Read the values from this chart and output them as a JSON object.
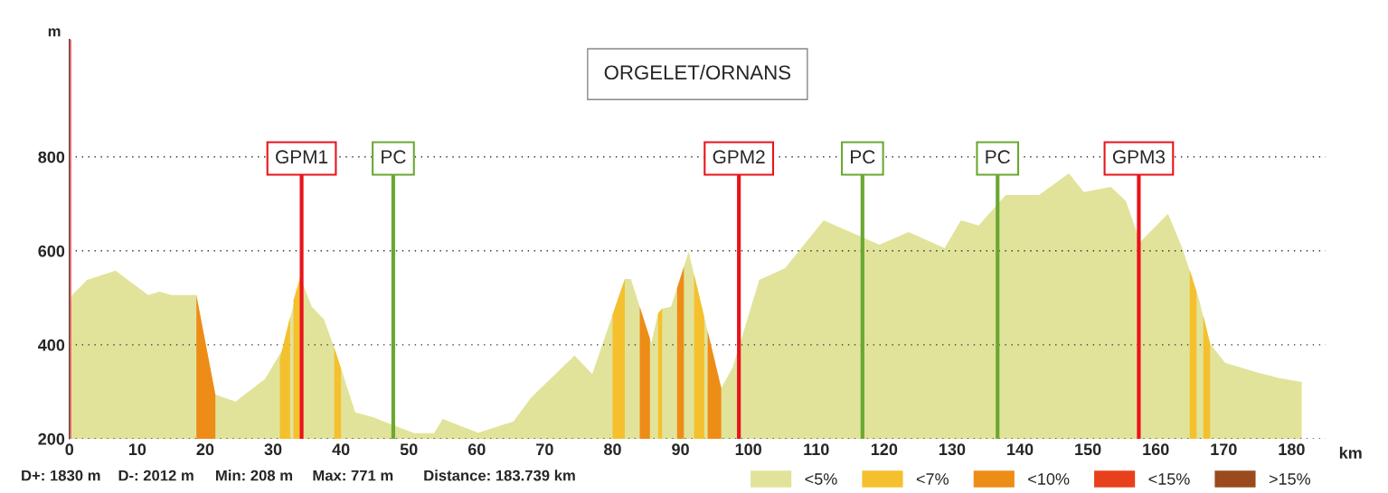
{
  "chart_data": {
    "type": "area",
    "title": "ORGELET/ORNANS",
    "xlabel": "km",
    "ylabel": "m",
    "xlim": [
      0,
      185
    ],
    "xticks": [
      0,
      10,
      20,
      30,
      40,
      50,
      60,
      70,
      80,
      90,
      100,
      110,
      120,
      130,
      140,
      150,
      160,
      170,
      180
    ],
    "ylim": [
      200,
      1050
    ],
    "yticks": [
      200,
      400,
      600,
      800
    ],
    "grid": "y",
    "legend": "bottom right",
    "series": [
      {
        "name": "<5%",
        "color": "#e1e39a",
        "x": [
          0,
          0.4,
          2.6,
          6.8,
          11.6,
          13.3,
          15,
          18.7,
          21.5,
          24.5,
          25.8,
          28.8,
          31.4,
          34,
          35.7,
          37.5,
          39.1,
          42.1,
          44.7,
          47.3,
          50.8,
          53.7,
          55,
          60.2,
          65.4,
          68,
          74.4,
          77,
          81.8,
          82.7,
          85.7,
          86.7,
          87.3,
          88.6,
          91.2,
          96,
          97.7,
          101.6,
          105.4,
          111.1,
          114.1,
          119.3,
          123.6,
          128.9,
          131.3,
          133.9,
          137.9,
          142.8,
          147.2,
          149.4,
          153.4,
          155.6,
          157.7,
          161.8,
          163.9,
          166.3,
          168,
          170.2,
          174.7,
          178.2,
          181.5
        ],
        "values": [
          490,
          506,
          538,
          558,
          506,
          513,
          506,
          506,
          294,
          279,
          294,
          327,
          390,
          544,
          481,
          454,
          390,
          256,
          246,
          231,
          212,
          212,
          242,
          213,
          237,
          288,
          377,
          338,
          540,
          540,
          404,
          467,
          477,
          481,
          598,
          308,
          352,
          538,
          563,
          665,
          646,
          613,
          640,
          606,
          665,
          654,
          719,
          719,
          765,
          725,
          736,
          706,
          619,
          679,
          606,
          500,
          402,
          362,
          342,
          329,
          321
        ]
      },
      {
        "name": "<7%",
        "color": "#f5c02e",
        "x": [
          31,
          32.5,
          32.7,
          33,
          34,
          36,
          39,
          40,
          60,
          80,
          81.8,
          84,
          86.7,
          87.3,
          89,
          92,
          93.5,
          120,
          165,
          166,
          166.5,
          167,
          168
        ],
        "values": [
          370,
          460,
          null,
          495,
          544,
          null,
          394,
          350,
          null,
          464,
          540,
          null,
          467,
          477,
          null,
          550,
          459,
          null,
          560,
          513,
          null,
          462,
          402
        ]
      },
      {
        "name": "<10%",
        "color": "#ee8c18",
        "x": [
          18.7,
          21.5,
          50,
          84,
          85.5,
          88,
          89.5,
          90.5,
          92,
          94,
          96
        ],
        "values": [
          506,
          294,
          null,
          481,
          413,
          null,
          521,
          566,
          null,
          429,
          308
        ]
      },
      {
        "name": "<15%",
        "color": "#e8401c"
      },
      {
        "name": ">15%",
        "color": "#9a4a1c"
      }
    ],
    "ref_lines": [
      {
        "axis": "x",
        "value": 0,
        "label": null,
        "color": "#e06060"
      },
      {
        "axis": "x",
        "value": 34.2,
        "label": "GPM1",
        "color": "#e8141c"
      },
      {
        "axis": "x",
        "value": 47.7,
        "label": "PC",
        "color": "#6aa832"
      },
      {
        "axis": "x",
        "value": 98.6,
        "label": "GPM2",
        "color": "#e8141c"
      },
      {
        "axis": "x",
        "value": 116.8,
        "label": "PC",
        "color": "#6aa832"
      },
      {
        "axis": "x",
        "value": 136.7,
        "label": "PC",
        "color": "#6aa832"
      },
      {
        "axis": "x",
        "value": 157.5,
        "label": "GPM3",
        "color": "#e8141c"
      }
    ],
    "annotations": [
      "D+: 1830 m",
      "D-: 2012 m",
      "Min: 208 m",
      "Max: 771 m",
      "Distance: 183.739 km"
    ]
  }
}
